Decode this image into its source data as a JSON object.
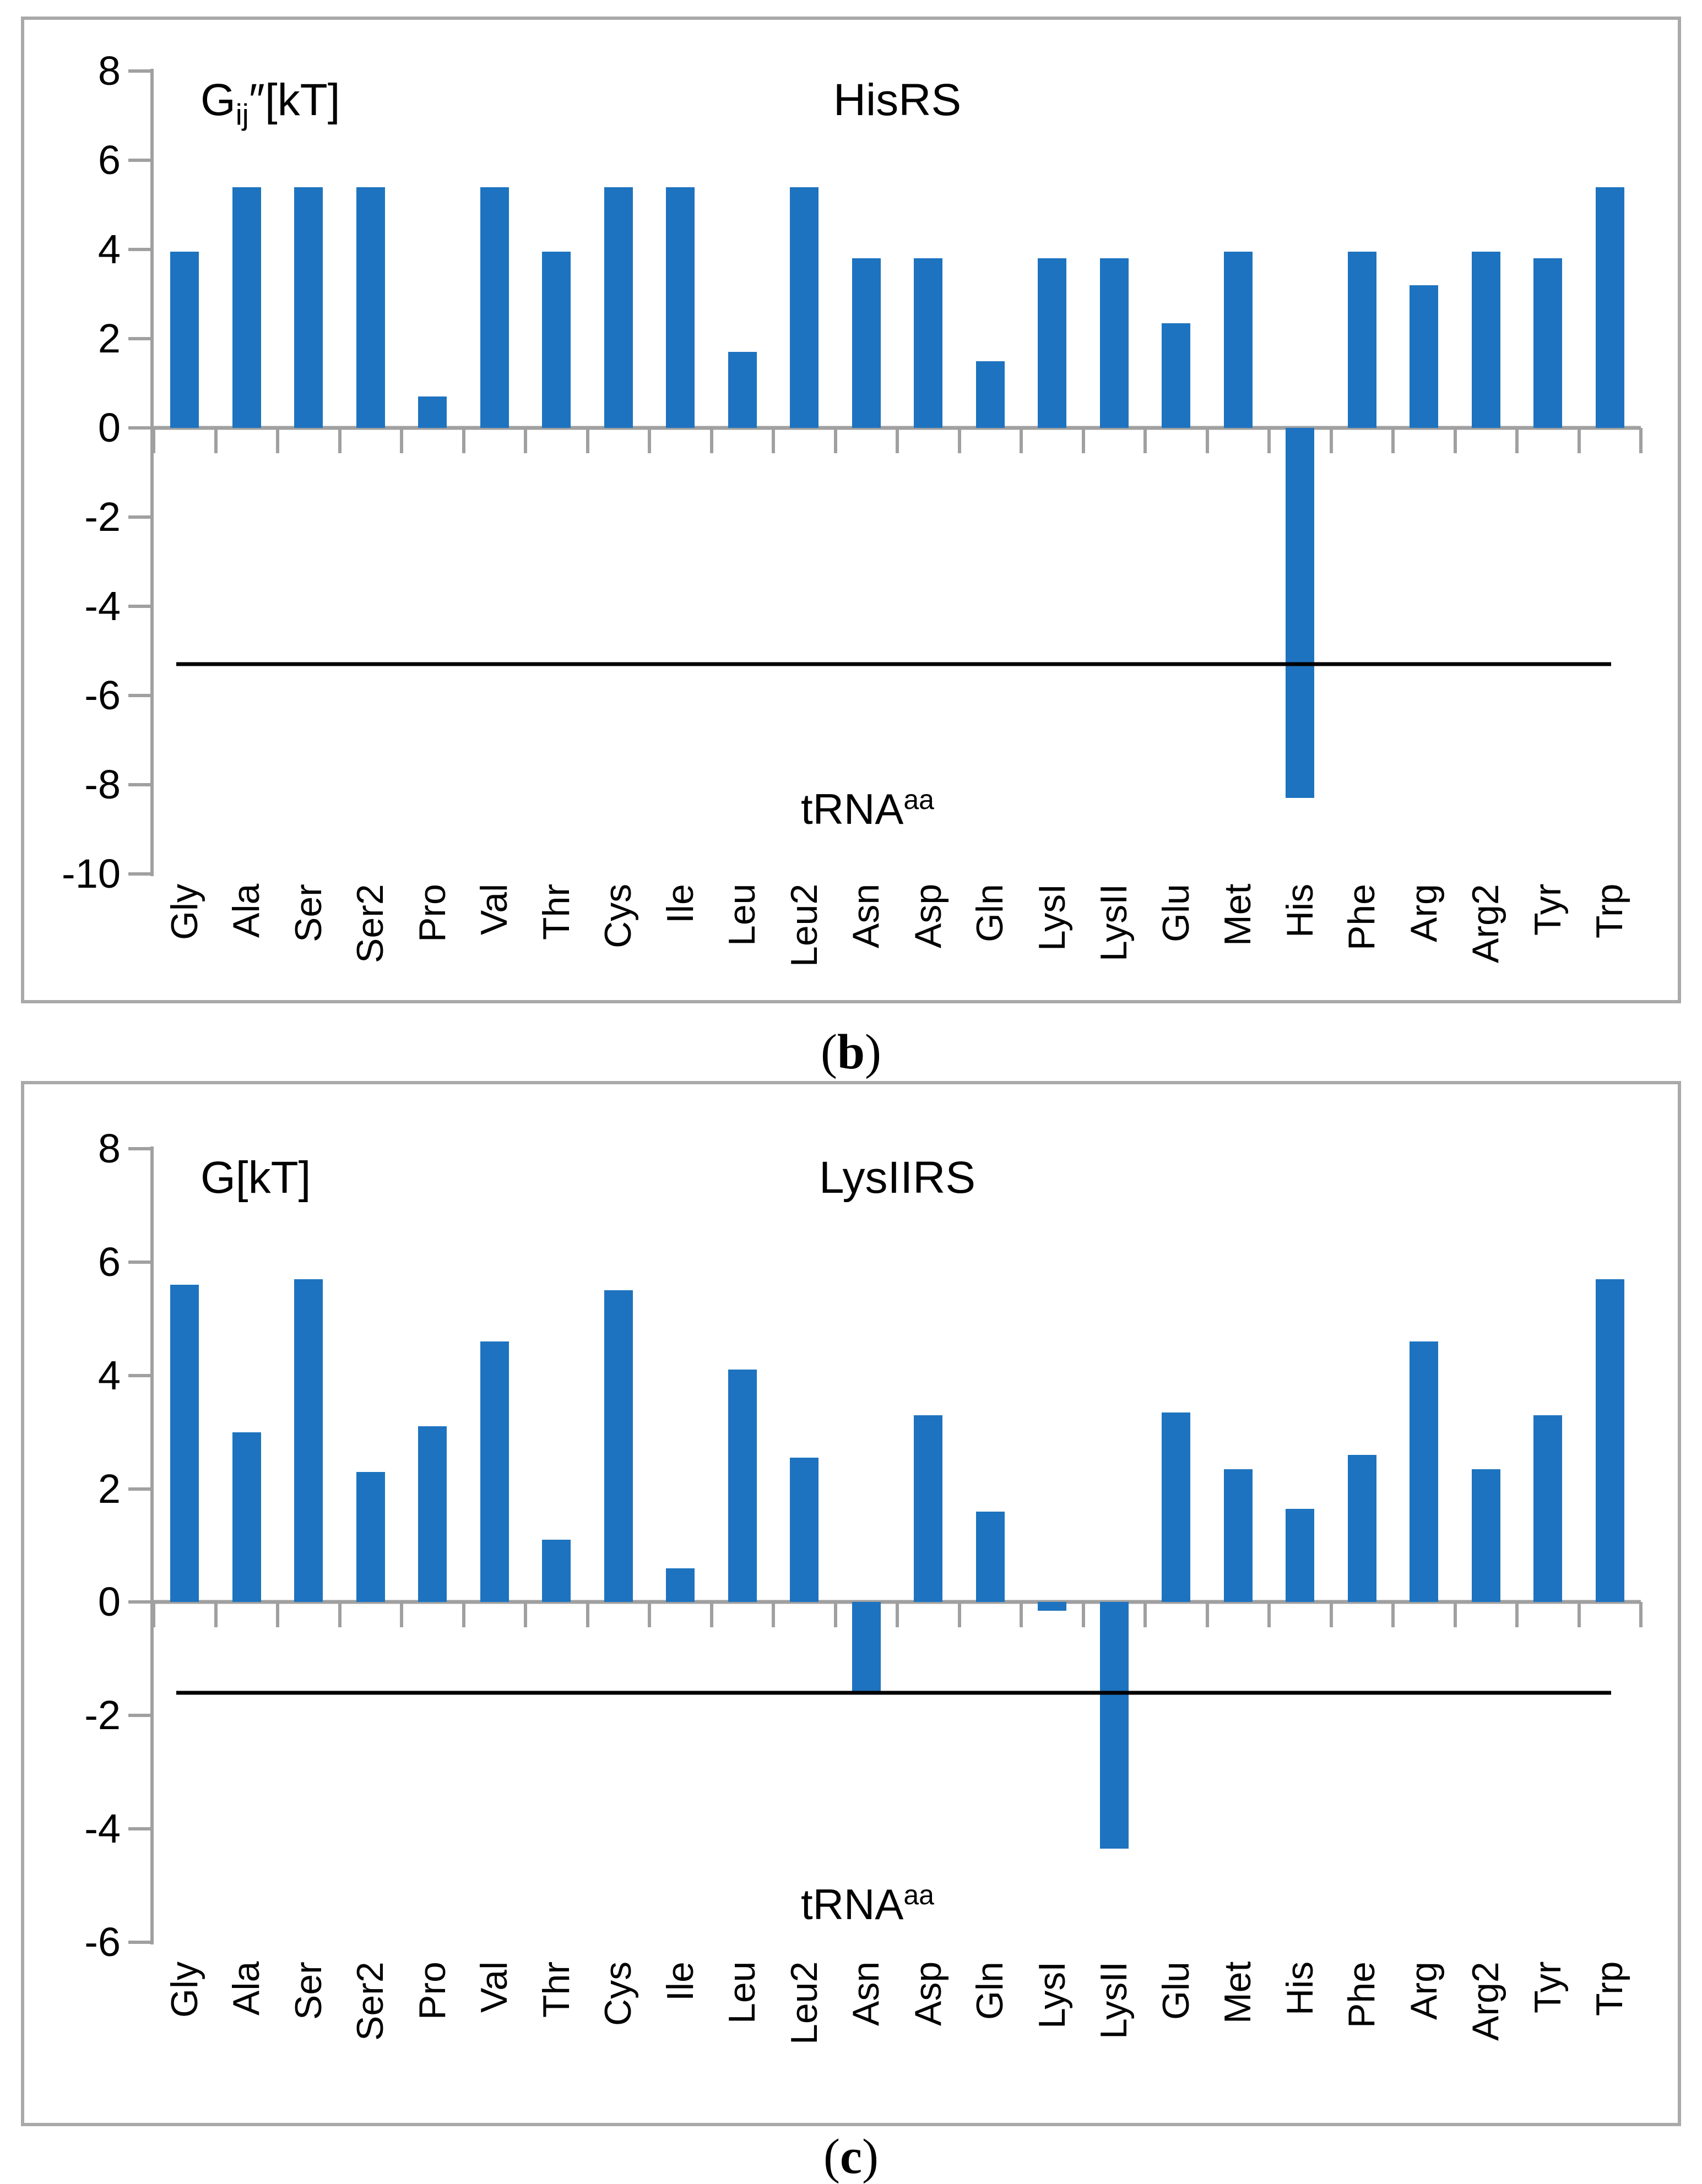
{
  "page": {
    "caption_b_pre": "(",
    "caption_b_letter": "b",
    "caption_b_post": ")",
    "caption_c_pre": "(",
    "caption_c_letter": "c",
    "caption_c_post": ")"
  },
  "colors": {
    "bar_blue": "#1d73bf",
    "axis_gray": "#a0a0a0",
    "frame_gray": "#a9a9a9",
    "threshold_black": "#000000"
  },
  "chart_data": [
    {
      "type": "bar",
      "panel": "b",
      "title": "HisRS",
      "ylabel_main": "G",
      "ylabel_sub": "ij",
      "ylabel_rest": "″[kT]",
      "xlabel_main": "tRNA",
      "xlabel_sup": "aa",
      "categories": [
        "Gly",
        "Ala",
        "Ser",
        "Ser2",
        "Pro",
        "Val",
        "Thr",
        "Cys",
        "Ile",
        "Leu",
        "Leu2",
        "Asn",
        "Asp",
        "Gln",
        "LysI",
        "LysII",
        "Glu",
        "Met",
        "His",
        "Phe",
        "Arg",
        "Arg2",
        "Tyr",
        "Trp"
      ],
      "values": [
        3.95,
        5.4,
        5.4,
        5.4,
        0.7,
        5.4,
        3.95,
        5.4,
        5.4,
        1.7,
        5.4,
        3.8,
        3.8,
        1.5,
        3.8,
        3.8,
        2.35,
        3.95,
        -8.3,
        3.95,
        3.2,
        3.95,
        3.8,
        5.4
      ],
      "ylim": [
        -10,
        8
      ],
      "yticks": [
        8,
        6,
        4,
        2,
        0,
        -2,
        -4,
        -6,
        -8,
        -10
      ],
      "threshold_line": -5.3,
      "bar_color": "#1d73bf",
      "grid": false,
      "legend": "none"
    },
    {
      "type": "bar",
      "panel": "c",
      "title": "LysIIRS",
      "ylabel_main": "G",
      "ylabel_sub": "",
      "ylabel_rest": "[kT]",
      "xlabel_main": "tRNA",
      "xlabel_sup": "aa",
      "categories": [
        "Gly",
        "Ala",
        "Ser",
        "Ser2",
        "Pro",
        "Val",
        "Thr",
        "Cys",
        "Ile",
        "Leu",
        "Leu2",
        "Asn",
        "Asp",
        "Gln",
        "LysI",
        "LysII",
        "Glu",
        "Met",
        "His",
        "Phe",
        "Arg",
        "Arg2",
        "Tyr",
        "Trp"
      ],
      "values": [
        5.6,
        3.0,
        5.7,
        2.3,
        3.1,
        4.6,
        1.1,
        5.5,
        0.6,
        4.1,
        2.55,
        -1.6,
        3.3,
        1.6,
        -0.15,
        -4.35,
        3.35,
        2.35,
        1.65,
        2.6,
        4.6,
        2.35,
        3.3,
        5.7
      ],
      "ylim": [
        -6,
        8
      ],
      "yticks": [
        8,
        6,
        4,
        2,
        0,
        -2,
        -4,
        -6
      ],
      "threshold_line": -1.6,
      "bar_color": "#1d73bf",
      "grid": false,
      "legend": "none"
    }
  ]
}
